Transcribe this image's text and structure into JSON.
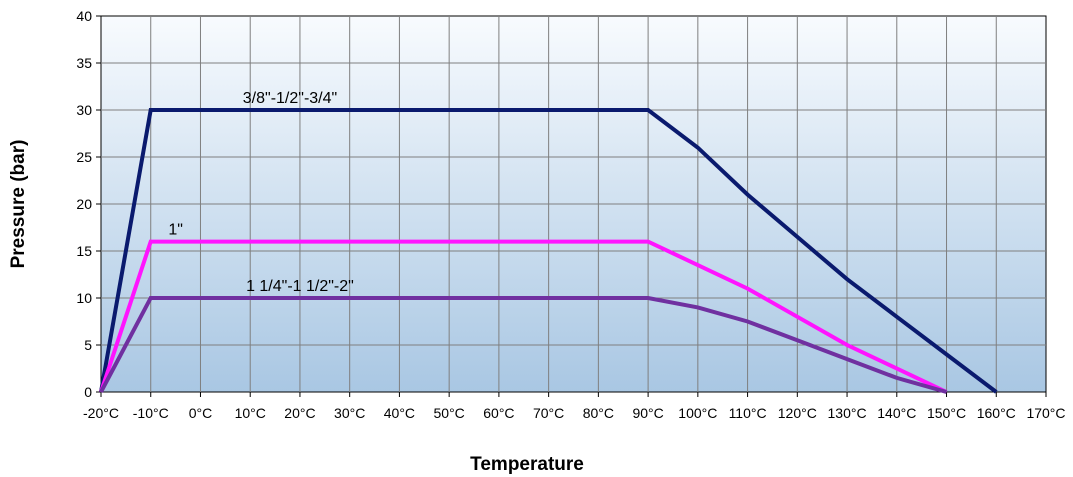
{
  "chart_data": {
    "type": "line",
    "xlabel": "Temperature",
    "ylabel": "Pressure  (bar)",
    "x_tick_labels": [
      "-20°C",
      "-10°C",
      "0°C",
      "10°C",
      "20°C",
      "30°C",
      "40°C",
      "50°C",
      "60°C",
      "70°C",
      "80°C",
      "90°C",
      "100°C",
      "110°C",
      "120°C",
      "130°C",
      "140°C",
      "150°C",
      "160°C",
      "170°C"
    ],
    "xlim": [
      -20,
      170
    ],
    "ylim": [
      0,
      40
    ],
    "y_ticks": [
      0,
      5,
      10,
      15,
      20,
      25,
      30,
      35,
      40
    ],
    "grid": true,
    "legend": "none",
    "series": [
      {
        "name": "3/8\"-1/2\"-3/4\"",
        "color": "#0a1a6e",
        "points": [
          [
            -20,
            0
          ],
          [
            -10,
            30
          ],
          [
            90,
            30
          ],
          [
            100,
            26
          ],
          [
            110,
            21
          ],
          [
            120,
            16.5
          ],
          [
            130,
            12
          ],
          [
            140,
            8
          ],
          [
            150,
            4
          ],
          [
            160,
            0
          ]
        ]
      },
      {
        "name": "1\"",
        "color": "#ff14ff",
        "points": [
          [
            -20,
            0
          ],
          [
            -10,
            16
          ],
          [
            90,
            16
          ],
          [
            110,
            11
          ],
          [
            130,
            5
          ],
          [
            150,
            0
          ]
        ]
      },
      {
        "name": "1 1/4\"-1 1/2\"-2\"",
        "color": "#7030a0",
        "points": [
          [
            -20,
            0
          ],
          [
            -10,
            10
          ],
          [
            90,
            10
          ],
          [
            100,
            9
          ],
          [
            110,
            7.5
          ],
          [
            120,
            5.5
          ],
          [
            130,
            3.5
          ],
          [
            140,
            1.5
          ],
          [
            150,
            0
          ]
        ]
      }
    ]
  }
}
